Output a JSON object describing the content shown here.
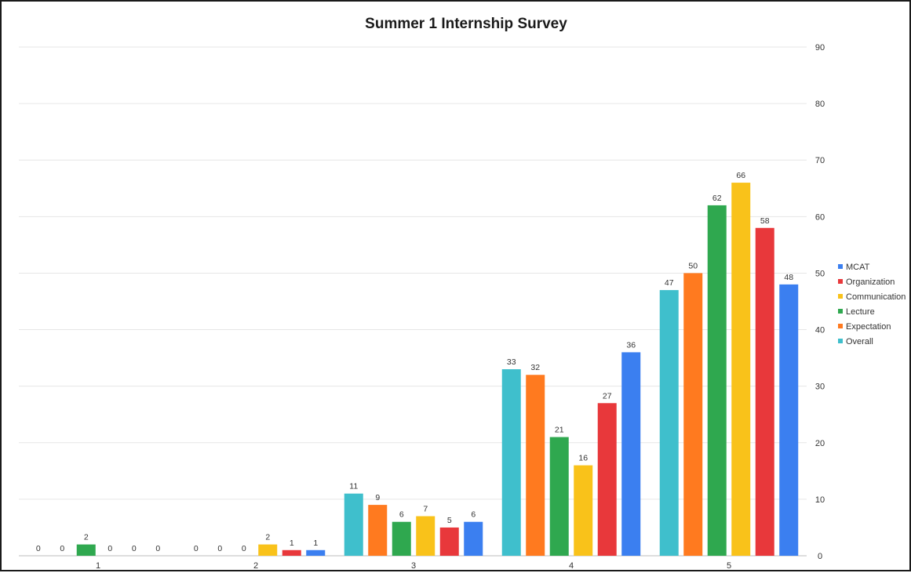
{
  "chart_data": {
    "type": "bar",
    "title": "Summer 1 Internship Survey",
    "xlabel": "",
    "ylabel": "",
    "categories": [
      "1",
      "2",
      "3",
      "4",
      "5"
    ],
    "ylim": [
      0,
      90
    ],
    "yticks": [
      0,
      10,
      20,
      30,
      40,
      50,
      60,
      70,
      80,
      90
    ],
    "y_axis_side": "right",
    "grid": true,
    "legend_position": "right",
    "data_labels": true,
    "series": [
      {
        "name": "Overall",
        "color": "#3fbfcc",
        "values": [
          0,
          0,
          11,
          33,
          47
        ]
      },
      {
        "name": "Expectation",
        "color": "#ff7a1f",
        "values": [
          0,
          0,
          9,
          32,
          50
        ]
      },
      {
        "name": "Lecture",
        "color": "#2fa84f",
        "values": [
          2,
          0,
          6,
          21,
          62
        ]
      },
      {
        "name": "Communication",
        "color": "#f9c21a",
        "values": [
          0,
          2,
          7,
          16,
          66
        ]
      },
      {
        "name": "Organization",
        "color": "#e8383b",
        "values": [
          0,
          1,
          5,
          27,
          58
        ]
      },
      {
        "name": "MCAT",
        "color": "#3b7ff0",
        "values": [
          0,
          1,
          6,
          36,
          48
        ]
      }
    ],
    "legend_order": [
      "MCAT",
      "Organization",
      "Communication",
      "Lecture",
      "Expectation",
      "Overall"
    ]
  }
}
